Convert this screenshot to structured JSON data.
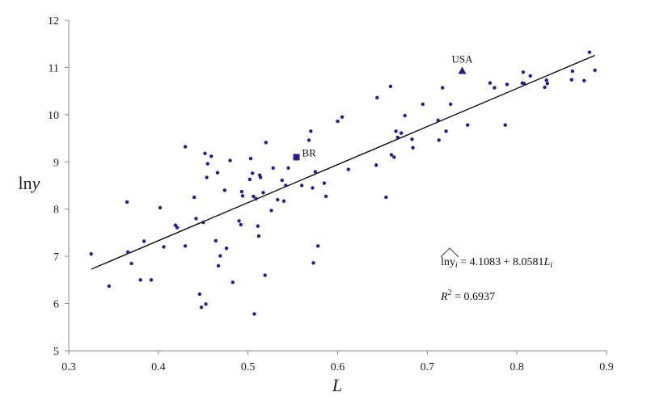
{
  "chart_data": {
    "type": "scatter",
    "xlabel": "L",
    "ylabel": "lny",
    "xlim": [
      0.3,
      0.9
    ],
    "ylim": [
      5,
      12
    ],
    "x_ticks": [
      "0.3",
      "0.4",
      "0.5",
      "0.6",
      "0.7",
      "0.8",
      "0.9"
    ],
    "y_ticks": [
      "5",
      "6",
      "7",
      "8",
      "9",
      "10",
      "11",
      "12"
    ],
    "grid": false,
    "series": [
      {
        "marker": "circle",
        "color": "#2a1a8a",
        "points": [
          [
            0.325,
            7.05
          ],
          [
            0.345,
            6.37
          ],
          [
            0.365,
            8.15
          ],
          [
            0.366,
            7.09
          ],
          [
            0.37,
            6.85
          ],
          [
            0.38,
            6.5
          ],
          [
            0.384,
            7.32
          ],
          [
            0.392,
            6.5
          ],
          [
            0.402,
            8.03
          ],
          [
            0.406,
            7.2
          ],
          [
            0.419,
            7.66
          ],
          [
            0.421,
            7.61
          ],
          [
            0.43,
            9.32
          ],
          [
            0.43,
            7.22
          ],
          [
            0.44,
            8.25
          ],
          [
            0.442,
            7.8
          ],
          [
            0.446,
            6.2
          ],
          [
            0.448,
            5.92
          ],
          [
            0.45,
            7.72
          ],
          [
            0.452,
            9.18
          ],
          [
            0.453,
            5.99
          ],
          [
            0.454,
            8.67
          ],
          [
            0.455,
            8.96
          ],
          [
            0.459,
            9.12
          ],
          [
            0.464,
            7.33
          ],
          [
            0.466,
            8.77
          ],
          [
            0.467,
            6.8
          ],
          [
            0.469,
            7.01
          ],
          [
            0.474,
            8.4
          ],
          [
            0.476,
            7.17
          ],
          [
            0.48,
            9.03
          ],
          [
            0.483,
            6.45
          ],
          [
            0.49,
            7.75
          ],
          [
            0.492,
            7.67
          ],
          [
            0.493,
            8.37
          ],
          [
            0.494,
            8.28
          ],
          [
            0.502,
            8.63
          ],
          [
            0.503,
            9.07
          ],
          [
            0.505,
            8.76
          ],
          [
            0.506,
            8.27
          ],
          [
            0.507,
            5.78
          ],
          [
            0.509,
            8.22
          ],
          [
            0.511,
            7.64
          ],
          [
            0.512,
            7.43
          ],
          [
            0.513,
            8.72
          ],
          [
            0.514,
            8.67
          ],
          [
            0.517,
            8.35
          ],
          [
            0.519,
            6.6
          ],
          [
            0.52,
            9.41
          ],
          [
            0.526,
            7.97
          ],
          [
            0.528,
            8.87
          ],
          [
            0.533,
            8.2
          ],
          [
            0.538,
            8.61
          ],
          [
            0.54,
            8.17
          ],
          [
            0.542,
            8.5
          ],
          [
            0.545,
            8.87
          ],
          [
            0.56,
            8.5
          ],
          [
            0.568,
            9.46
          ],
          [
            0.57,
            9.65
          ],
          [
            0.572,
            8.45
          ],
          [
            0.573,
            6.86
          ],
          [
            0.575,
            8.79
          ],
          [
            0.578,
            7.22
          ],
          [
            0.585,
            8.55
          ],
          [
            0.587,
            8.27
          ],
          [
            0.6,
            9.86
          ],
          [
            0.605,
            9.95
          ],
          [
            0.612,
            8.84
          ],
          [
            0.643,
            8.93
          ],
          [
            0.644,
            10.36
          ],
          [
            0.654,
            8.25
          ],
          [
            0.659,
            10.6
          ],
          [
            0.66,
            9.15
          ],
          [
            0.663,
            9.1
          ],
          [
            0.665,
            9.65
          ],
          [
            0.667,
            9.52
          ],
          [
            0.671,
            9.61
          ],
          [
            0.675,
            9.98
          ],
          [
            0.683,
            9.48
          ],
          [
            0.684,
            9.3
          ],
          [
            0.695,
            10.22
          ],
          [
            0.712,
            9.88
          ],
          [
            0.713,
            9.46
          ],
          [
            0.717,
            10.57
          ],
          [
            0.721,
            9.65
          ],
          [
            0.726,
            10.22
          ],
          [
            0.745,
            9.78
          ],
          [
            0.77,
            10.67
          ],
          [
            0.775,
            10.57
          ],
          [
            0.787,
            9.78
          ],
          [
            0.789,
            10.64
          ],
          [
            0.806,
            10.67
          ],
          [
            0.807,
            10.9
          ],
          [
            0.808,
            10.66
          ],
          [
            0.815,
            10.82
          ],
          [
            0.831,
            10.58
          ],
          [
            0.833,
            10.73
          ],
          [
            0.834,
            10.66
          ],
          [
            0.861,
            10.74
          ],
          [
            0.862,
            10.92
          ],
          [
            0.875,
            10.72
          ],
          [
            0.881,
            11.32
          ],
          [
            0.887,
            10.94
          ]
        ]
      },
      {
        "name": "BR",
        "marker": "square",
        "color": "#2a1a8a",
        "points": [
          [
            0.554,
            9.1
          ]
        ]
      },
      {
        "name": "USA",
        "marker": "triangle",
        "color": "#2a1a8a",
        "points": [
          [
            0.739,
            10.93
          ]
        ]
      }
    ],
    "trendline": {
      "intercept": 4.1083,
      "slope": 8.0581,
      "x_range": [
        0.325,
        0.887
      ],
      "color": "#000000"
    },
    "annotations": {
      "br": "BR",
      "usa": "USA",
      "equation_left": "lny",
      "equation_left_sub": "i",
      "equation_right": " = 4.1083 + 8.0581",
      "equation_var": "L",
      "equation_var_sub": "i",
      "r2_label": "R",
      "r2_exp": "2",
      "r2_value": " = 0.6937"
    }
  }
}
